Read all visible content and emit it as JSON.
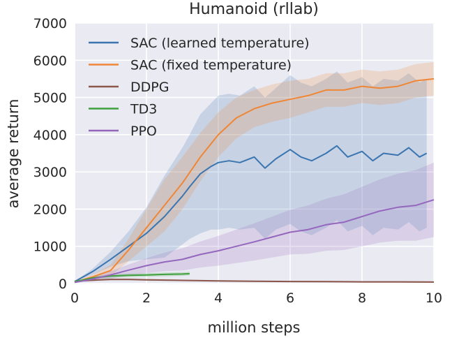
{
  "chart_data": {
    "type": "line",
    "title": "Humanoid (rllab)",
    "xlabel": "million steps",
    "ylabel": "average return",
    "xlim": [
      0,
      10
    ],
    "ylim": [
      0,
      7000
    ],
    "xticks": [
      "0",
      "2",
      "4",
      "6",
      "8",
      "10"
    ],
    "yticks": [
      "0",
      "1000",
      "2000",
      "3000",
      "4000",
      "5000",
      "6000",
      "7000"
    ],
    "grid": true,
    "legend_position": "top-left",
    "series": [
      {
        "name": "SAC (learned temperature)",
        "color": "#3a75b0",
        "x": [
          0,
          0.5,
          1,
          1.5,
          2,
          2.5,
          3,
          3.2,
          3.5,
          3.8,
          4,
          4.3,
          4.6,
          5,
          5.3,
          5.6,
          6,
          6.3,
          6.6,
          7,
          7.3,
          7.6,
          8,
          8.3,
          8.6,
          9,
          9.3,
          9.6,
          9.8
        ],
        "y": [
          50,
          320,
          650,
          1000,
          1350,
          1800,
          2350,
          2600,
          2950,
          3150,
          3250,
          3300,
          3250,
          3400,
          3100,
          3350,
          3600,
          3400,
          3300,
          3500,
          3700,
          3400,
          3550,
          3300,
          3500,
          3450,
          3650,
          3400,
          3500
        ],
        "band": [
          0,
          80,
          200,
          400,
          700,
          1100,
          1300,
          1400,
          1600,
          1700,
          1800,
          1800,
          1800,
          1900,
          1900,
          1900,
          2000,
          2000,
          2000,
          2000,
          2000,
          2000,
          2000,
          2000,
          2000,
          2000,
          2000,
          2000,
          2000
        ]
      },
      {
        "name": "SAC (fixed temperature)",
        "color": "#ef8636",
        "x": [
          0,
          0.5,
          1,
          1.5,
          2,
          2.5,
          3,
          3.5,
          4,
          4.5,
          5,
          5.5,
          6,
          6.5,
          7,
          7.5,
          8,
          8.5,
          9,
          9.5,
          10
        ],
        "y": [
          40,
          180,
          350,
          900,
          1500,
          2100,
          2700,
          3400,
          4000,
          4450,
          4700,
          4850,
          4950,
          5050,
          5200,
          5200,
          5300,
          5250,
          5300,
          5450,
          5500
        ],
        "band": [
          0,
          60,
          150,
          300,
          500,
          700,
          700,
          650,
          600,
          550,
          500,
          500,
          500,
          450,
          450,
          450,
          450,
          450,
          450,
          450,
          450
        ]
      },
      {
        "name": "DDPG",
        "color": "#8c564b",
        "x": [
          0,
          0.5,
          1,
          1.5,
          2,
          3,
          4,
          5,
          6,
          7,
          8,
          9,
          10
        ],
        "y": [
          60,
          90,
          110,
          110,
          100,
          85,
          70,
          60,
          55,
          50,
          45,
          45,
          40
        ],
        "band": [
          0,
          20,
          25,
          25,
          25,
          20,
          20,
          20,
          20,
          20,
          20,
          20,
          20
        ]
      },
      {
        "name": "TD3",
        "color": "#3da03d",
        "x": [
          0,
          0.5,
          1,
          1.5,
          2,
          2.5,
          3,
          3.2
        ],
        "y": [
          50,
          150,
          200,
          220,
          230,
          245,
          255,
          265
        ],
        "band": [
          0,
          40,
          50,
          50,
          50,
          50,
          50,
          50
        ]
      },
      {
        "name": "PPO",
        "color": "#9467bd",
        "x": [
          0,
          0.5,
          1,
          1.5,
          2,
          2.5,
          3,
          3.5,
          4,
          4.5,
          5,
          5.5,
          6,
          6.5,
          7,
          7.5,
          8,
          8.5,
          9,
          9.5,
          10
        ],
        "y": [
          30,
          120,
          230,
          360,
          480,
          580,
          650,
          780,
          880,
          1000,
          1120,
          1250,
          1380,
          1450,
          1580,
          1650,
          1800,
          1950,
          2050,
          2100,
          2250
        ],
        "band": [
          0,
          60,
          100,
          150,
          200,
          250,
          300,
          350,
          400,
          450,
          500,
          550,
          600,
          650,
          700,
          750,
          800,
          850,
          900,
          950,
          1000
        ]
      }
    ]
  }
}
